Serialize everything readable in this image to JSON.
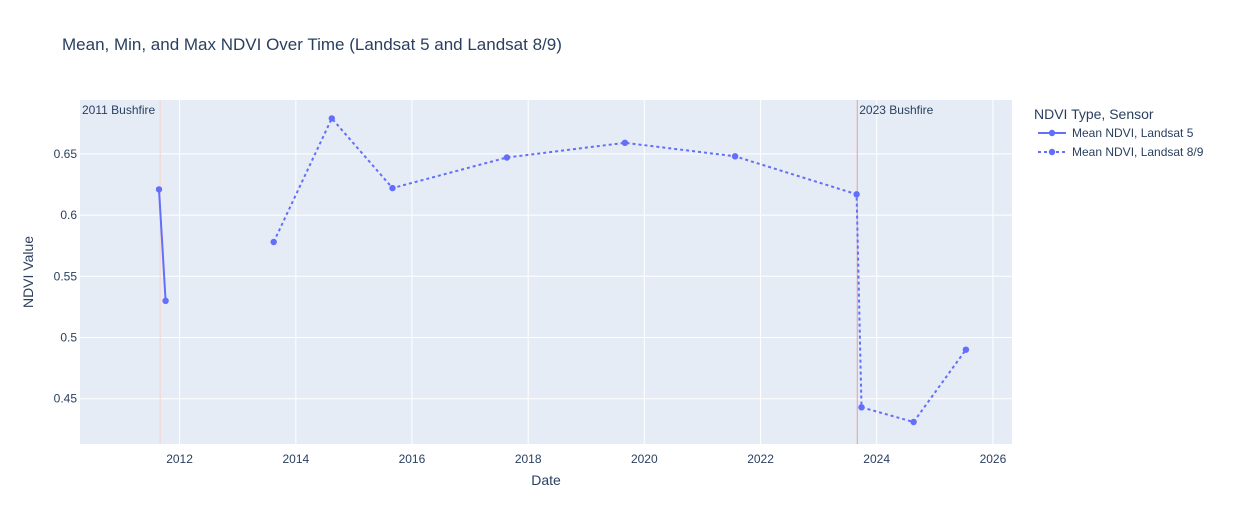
{
  "chart_data": {
    "type": "line",
    "title": "Mean, Min, and Max NDVI Over Time (Landsat 5 and Landsat 8/9)",
    "xlabel": "Date",
    "ylabel": "NDVI Value",
    "x_ticks": [
      "2012",
      "2014",
      "2016",
      "2018",
      "2020",
      "2022",
      "2024",
      "2026"
    ],
    "y_ticks": [
      "0.45",
      "0.5",
      "0.55",
      "0.6",
      "0.65"
    ],
    "xlim": [
      "2010-04-15",
      "2026-05-01"
    ],
    "ylim": [
      0.413,
      0.694
    ],
    "grid": true,
    "legend": {
      "title": "NDVI Type, Sensor",
      "placement": "right"
    },
    "colors": {
      "series": "#636efa",
      "plot_bg": "#e5ecf6",
      "grid": "#ffffff",
      "annotation_2011": "#f3d5cc",
      "annotation_2023": "#ef9a9a",
      "text": "#2a3f5f"
    },
    "annotations": [
      {
        "label": "2011 Bushfire",
        "date": "2011-09-01"
      },
      {
        "label": "2023 Bushfire",
        "date": "2023-09-01"
      }
    ],
    "series": [
      {
        "name": "Mean NDVI, Landsat 5",
        "dash": "solid",
        "points": [
          {
            "x": "2011-08-25",
            "y": 0.621
          },
          {
            "x": "2011-10-05",
            "y": 0.53
          }
        ]
      },
      {
        "name": "Mean NDVI, Landsat 8/9",
        "dash": "dot",
        "points": [
          {
            "x": "2013-08-15",
            "y": 0.578
          },
          {
            "x": "2014-08-15",
            "y": 0.679
          },
          {
            "x": "2015-09-01",
            "y": 0.622
          },
          {
            "x": "2017-08-20",
            "y": 0.647
          },
          {
            "x": "2019-09-01",
            "y": 0.659
          },
          {
            "x": "2021-07-25",
            "y": 0.648
          },
          {
            "x": "2023-08-28",
            "y": 0.617
          },
          {
            "x": "2023-09-28",
            "y": 0.443
          },
          {
            "x": "2024-08-20",
            "y": 0.431
          },
          {
            "x": "2025-07-15",
            "y": 0.49
          }
        ]
      }
    ]
  }
}
